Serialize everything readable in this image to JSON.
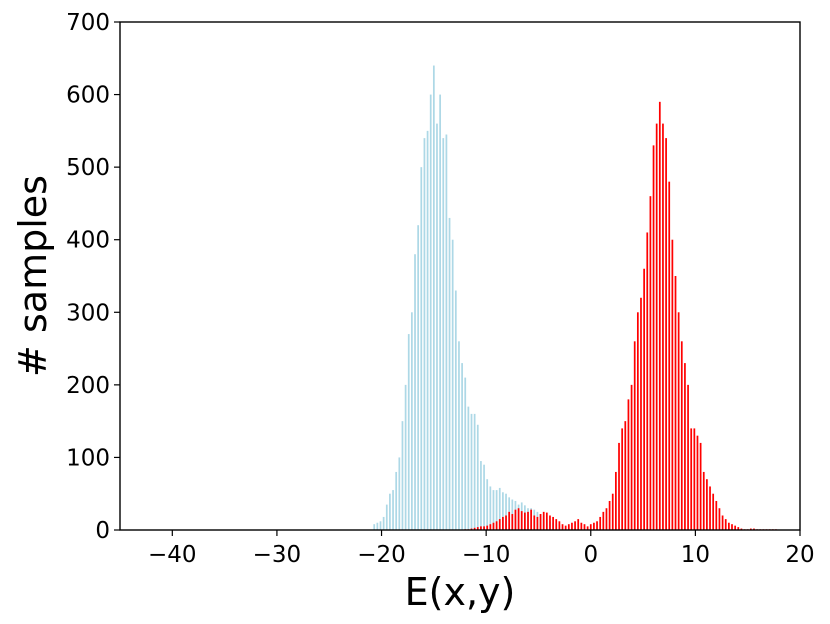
{
  "chart_data": {
    "type": "bar",
    "xlabel": "E(x,y)",
    "ylabel": "# samples",
    "xlim": [
      -45,
      20
    ],
    "ylim": [
      0,
      700
    ],
    "bin_width": 0.3,
    "xticks": [
      -40,
      -30,
      -20,
      -10,
      0,
      10,
      20
    ],
    "xtick_labels": [
      "−40",
      "−30",
      "−20",
      "−10",
      "0",
      "10",
      "20"
    ],
    "yticks": [
      0,
      100,
      200,
      300,
      400,
      500,
      600,
      700
    ],
    "ytick_labels": [
      "0",
      "100",
      "200",
      "300",
      "400",
      "500",
      "600",
      "700"
    ],
    "grid": false,
    "legend": "none",
    "series": [
      {
        "color": "#add8e6",
        "x": [
          -20.7,
          -20.4,
          -20.1,
          -19.8,
          -19.5,
          -19.2,
          -18.9,
          -18.6,
          -18.3,
          -18.0,
          -17.7,
          -17.4,
          -17.1,
          -16.8,
          -16.5,
          -16.2,
          -15.9,
          -15.6,
          -15.3,
          -15.0,
          -14.7,
          -14.4,
          -14.1,
          -13.8,
          -13.5,
          -13.2,
          -12.9,
          -12.6,
          -12.3,
          -12.0,
          -11.7,
          -11.4,
          -11.1,
          -10.8,
          -10.5,
          -10.2,
          -9.9,
          -9.6,
          -9.3,
          -9.0,
          -8.7,
          -8.4,
          -8.1,
          -7.8,
          -7.5,
          -7.2,
          -6.9,
          -6.6,
          -6.3,
          -6.0,
          -5.7,
          -5.4,
          -5.1,
          -4.8,
          -4.5,
          -4.2,
          -3.9,
          -3.6,
          -3.3,
          -3.0,
          -2.7,
          -2.4,
          -2.1,
          -1.8,
          -1.5,
          -1.2,
          -0.9,
          -0.6
        ],
        "values": [
          8,
          10,
          12,
          18,
          35,
          50,
          55,
          80,
          100,
          150,
          200,
          270,
          300,
          380,
          420,
          500,
          540,
          550,
          600,
          640,
          560,
          600,
          540,
          545,
          430,
          400,
          330,
          260,
          230,
          210,
          170,
          160,
          160,
          145,
          95,
          90,
          70,
          60,
          55,
          55,
          58,
          52,
          50,
          45,
          42,
          40,
          35,
          38,
          34,
          30,
          30,
          28,
          25,
          22,
          20,
          15,
          12,
          10,
          8,
          6,
          4,
          3,
          3,
          2,
          2,
          1,
          1,
          1
        ]
      },
      {
        "color": "#ff0000",
        "x": [
          -12.0,
          -11.7,
          -11.4,
          -11.1,
          -10.8,
          -10.5,
          -10.2,
          -9.9,
          -9.6,
          -9.3,
          -9.0,
          -8.7,
          -8.4,
          -8.1,
          -7.8,
          -7.5,
          -7.2,
          -6.9,
          -6.6,
          -6.3,
          -6.0,
          -5.7,
          -5.4,
          -5.1,
          -4.8,
          -4.5,
          -4.2,
          -3.9,
          -3.6,
          -3.3,
          -3.0,
          -2.7,
          -2.4,
          -2.1,
          -1.8,
          -1.5,
          -1.2,
          -0.9,
          -0.6,
          -0.3,
          0.0,
          0.3,
          0.6,
          0.9,
          1.2,
          1.5,
          1.8,
          2.1,
          2.4,
          2.7,
          3.0,
          3.3,
          3.6,
          3.9,
          4.2,
          4.5,
          4.8,
          5.1,
          5.4,
          5.7,
          6.0,
          6.3,
          6.6,
          6.9,
          7.2,
          7.5,
          7.8,
          8.1,
          8.4,
          8.7,
          9.0,
          9.3,
          9.6,
          9.9,
          10.2,
          10.5,
          10.8,
          11.1,
          11.4,
          11.7,
          12.0,
          12.3,
          12.6,
          12.9,
          13.2,
          13.5,
          13.8,
          14.1,
          14.4,
          14.7,
          15.0,
          15.3,
          15.6,
          15.9,
          16.2,
          16.5,
          16.8,
          17.1,
          17.4,
          17.7
        ],
        "values": [
          1,
          1,
          2,
          3,
          4,
          5,
          5,
          6,
          8,
          10,
          12,
          15,
          18,
          20,
          25,
          22,
          28,
          30,
          26,
          24,
          25,
          28,
          20,
          18,
          22,
          25,
          24,
          20,
          18,
          15,
          12,
          8,
          6,
          8,
          10,
          12,
          15,
          10,
          8,
          5,
          8,
          10,
          12,
          18,
          25,
          30,
          40,
          50,
          80,
          120,
          140,
          150,
          180,
          200,
          260,
          300,
          320,
          360,
          410,
          460,
          530,
          560,
          590,
          560,
          540,
          480,
          400,
          350,
          300,
          260,
          230,
          200,
          140,
          140,
          130,
          120,
          80,
          70,
          60,
          50,
          40,
          30,
          20,
          15,
          10,
          8,
          6,
          4,
          2,
          1,
          1,
          2,
          2,
          1,
          1,
          1,
          1,
          1,
          1,
          1
        ]
      }
    ]
  }
}
